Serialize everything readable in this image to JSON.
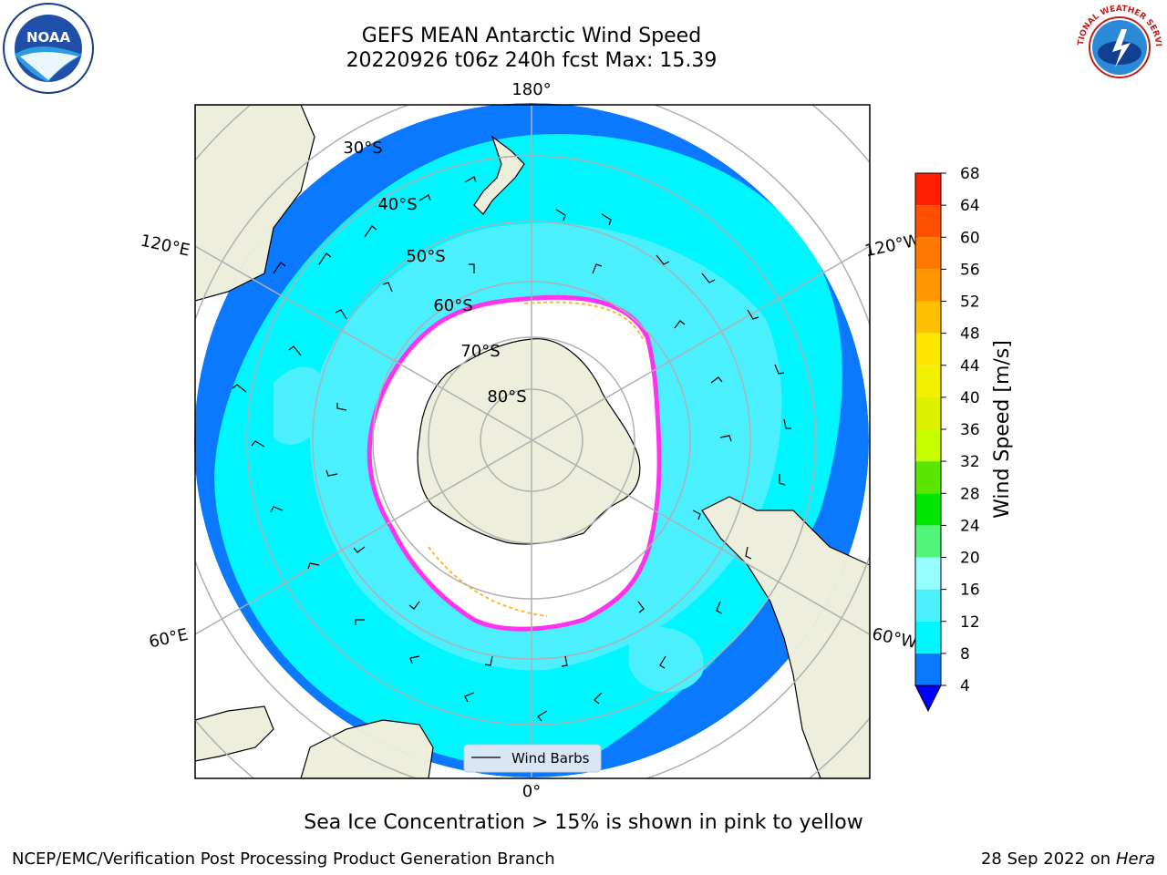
{
  "title": {
    "line1": "GEFS MEAN Antarctic Wind Speed",
    "line2": "20220926 t06z 240h fcst   Max: 15.39"
  },
  "logos": {
    "left": {
      "icon": "noaa-logo",
      "text": "NOAA"
    },
    "right": {
      "icon": "nws-logo",
      "text": "NATIONAL WEATHER SERVICE"
    }
  },
  "map": {
    "projection": "south-polar-stereographic",
    "longitude_labels": [
      "180°",
      "120°E",
      "120°W",
      "60°E",
      "60°W",
      "0°"
    ],
    "latitude_labels": [
      "30°S",
      "40°S",
      "50°S",
      "60°S",
      "70°S",
      "80°S"
    ],
    "legend_label": "Wind Barbs",
    "colors": {
      "land": "#eeeedc",
      "ocean_4_8": "#0a78ff",
      "ocean_8_12": "#00f5ff",
      "ocean_12_16": "#4bf0ff",
      "sea_ice_edge": "#ff33ee",
      "sea_ice_inner": "#ffb833",
      "gridline": "#b0b0b0"
    }
  },
  "colorbar": {
    "label": "Wind Speed [m/s]",
    "ticks": [
      "4",
      "8",
      "12",
      "16",
      "20",
      "24",
      "28",
      "32",
      "36",
      "40",
      "44",
      "48",
      "52",
      "56",
      "60",
      "64",
      "68"
    ],
    "colors": [
      "#0a78ff",
      "#00f5ff",
      "#4bf0ff",
      "#96ffff",
      "#50f57a",
      "#00e600",
      "#5ae600",
      "#c8ff00",
      "#dcf000",
      "#f0f000",
      "#ffe600",
      "#ffbe00",
      "#ff9600",
      "#ff7800",
      "#ff5000",
      "#ff1e00"
    ],
    "under_color": "#0000ff"
  },
  "caption": "Sea Ice Concentration > 15% is shown in pink to yellow",
  "footer": {
    "left": "NCEP/EMC/Verification Post Processing Product Generation Branch",
    "right_prefix": "28 Sep 2022 on",
    "right_host": "Hera"
  }
}
